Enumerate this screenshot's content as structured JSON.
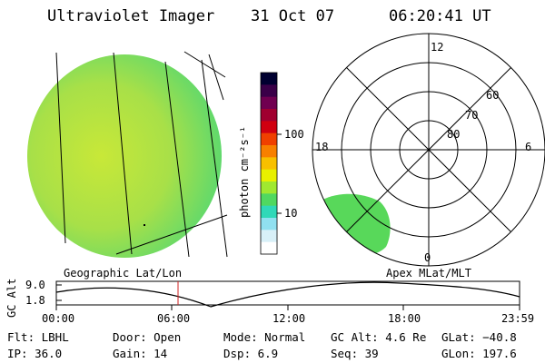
{
  "header": {
    "instrument": "Ultraviolet Imager",
    "date": "31 Oct 07",
    "time": "06:20:41 UT"
  },
  "colorbar": {
    "label": "photon cm⁻²s⁻¹",
    "ticks": [
      "100",
      "10"
    ],
    "colors": [
      "#000030",
      "#3a0048",
      "#700050",
      "#a00030",
      "#d00010",
      "#f04000",
      "#f88000",
      "#f8c000",
      "#e8f000",
      "#a0e830",
      "#50d860",
      "#30d8b8",
      "#90e0f0",
      "#d8f0f8",
      "#ffffff"
    ]
  },
  "geo_panel": {
    "earth_fill": "#a8e04c"
  },
  "polar_panel": {
    "mlt_labels": {
      "top": "12",
      "left": "18",
      "right": "6",
      "bottom": "0"
    },
    "lat_labels": [
      "60",
      "70",
      "80"
    ],
    "aurora_fill": "#58d85a"
  },
  "altitude_plot": {
    "ylabel": "GC Alt",
    "yticks": [
      "9.0",
      "1.8"
    ],
    "left_title": "Geographic Lat/Lon",
    "right_title": "Apex  MLat/MLT",
    "xticks": [
      "00:00",
      "06:00",
      "12:00",
      "18:00",
      "23:59"
    ],
    "current_time_marker_color": "#d02020"
  },
  "info": {
    "flt": "Flt: LBHL",
    "ip": "IP: 36.0",
    "door": "Door: Open",
    "gain": "Gain: 14",
    "mode": "Mode: Normal",
    "dsp": "Dsp:    6.9",
    "gcalt": "GC Alt: 4.6 Re",
    "seq": "Seq: 39",
    "glat": "GLat: −40.8",
    "glon": "GLon: 197.6"
  }
}
